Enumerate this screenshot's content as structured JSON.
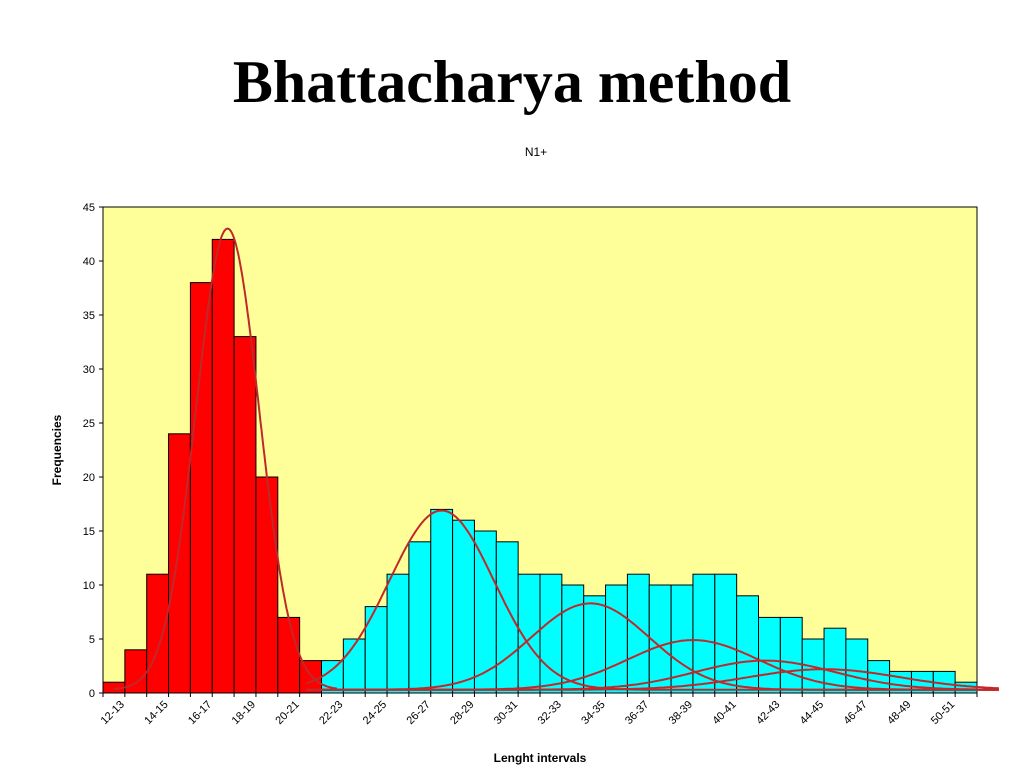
{
  "slide": {
    "title": "Bhattacharya method"
  },
  "chart_data": {
    "type": "bar",
    "title": "N1+",
    "xlabel": "Lenght intervals",
    "ylabel": "Frequencies",
    "ylim": [
      0,
      45
    ],
    "yticks": [
      0,
      5,
      10,
      15,
      20,
      25,
      30,
      35,
      40,
      45
    ],
    "plot_background": "#ffff99",
    "categories": [
      "12-13",
      "13-14",
      "14-15",
      "15-16",
      "16-17",
      "17-18",
      "18-19",
      "19-20",
      "20-21",
      "21-22",
      "22-23",
      "23-24",
      "24-25",
      "25-26",
      "26-27",
      "27-28",
      "28-29",
      "29-30",
      "30-31",
      "31-32",
      "32-33",
      "33-34",
      "34-35",
      "35-36",
      "36-37",
      "37-38",
      "38-39",
      "39-40",
      "40-41",
      "41-42",
      "42-43",
      "43-44",
      "44-45",
      "45-46",
      "46-47",
      "47-48",
      "48-49",
      "49-50",
      "50-51",
      "51-52"
    ],
    "visible_tick_labels": [
      "12-13",
      "14-15",
      "16-17",
      "18-19",
      "20-21",
      "22-23",
      "24-25",
      "26-27",
      "28-29",
      "30-31",
      "32-33",
      "34-35",
      "36-37",
      "38-39",
      "40-41",
      "42-43",
      "44-45",
      "46-47",
      "48-49",
      "50-51"
    ],
    "series": [
      {
        "color": "#ff0000",
        "values": [
          1,
          4,
          11,
          24,
          38,
          42,
          33,
          20,
          7,
          3,
          0,
          0,
          0,
          0,
          0,
          0,
          0,
          0,
          0,
          0,
          0,
          0,
          0,
          0,
          0,
          0,
          0,
          0,
          0,
          0,
          0,
          0,
          0,
          0,
          0,
          0,
          0,
          0,
          0,
          0
        ]
      },
      {
        "color": "#00ffff",
        "values": [
          0,
          0,
          0,
          0,
          0,
          0,
          0,
          0,
          0,
          0,
          3,
          5,
          8,
          11,
          14,
          17,
          16,
          15,
          14,
          11,
          11,
          10,
          9,
          10,
          11,
          10,
          10,
          11,
          11,
          9,
          7,
          7,
          5,
          6,
          5,
          3,
          2,
          2,
          2,
          1
        ]
      }
    ],
    "fitted_curves": {
      "color": "#c0292b",
      "curves": [
        {
          "mean": 17.2,
          "sd": 1.45,
          "peak": 42.7,
          "start": 0,
          "end": 10.2
        },
        {
          "mean": 27.0,
          "sd": 2.4,
          "peak": 16.6,
          "start": 8.8,
          "end": 40.5
        },
        {
          "mean": 33.8,
          "sd": 2.7,
          "peak": 8.0,
          "start": 8.8,
          "end": 40.5
        },
        {
          "mean": 38.5,
          "sd": 3.0,
          "peak": 4.6,
          "start": 8.8,
          "end": 40.5
        },
        {
          "mean": 41.8,
          "sd": 3.2,
          "peak": 2.7,
          "start": 8.8,
          "end": 40.5
        },
        {
          "mean": 44.5,
          "sd": 3.5,
          "peak": 1.9,
          "start": 8.8,
          "end": 40.5
        }
      ]
    },
    "grid": false,
    "legend": "none"
  }
}
